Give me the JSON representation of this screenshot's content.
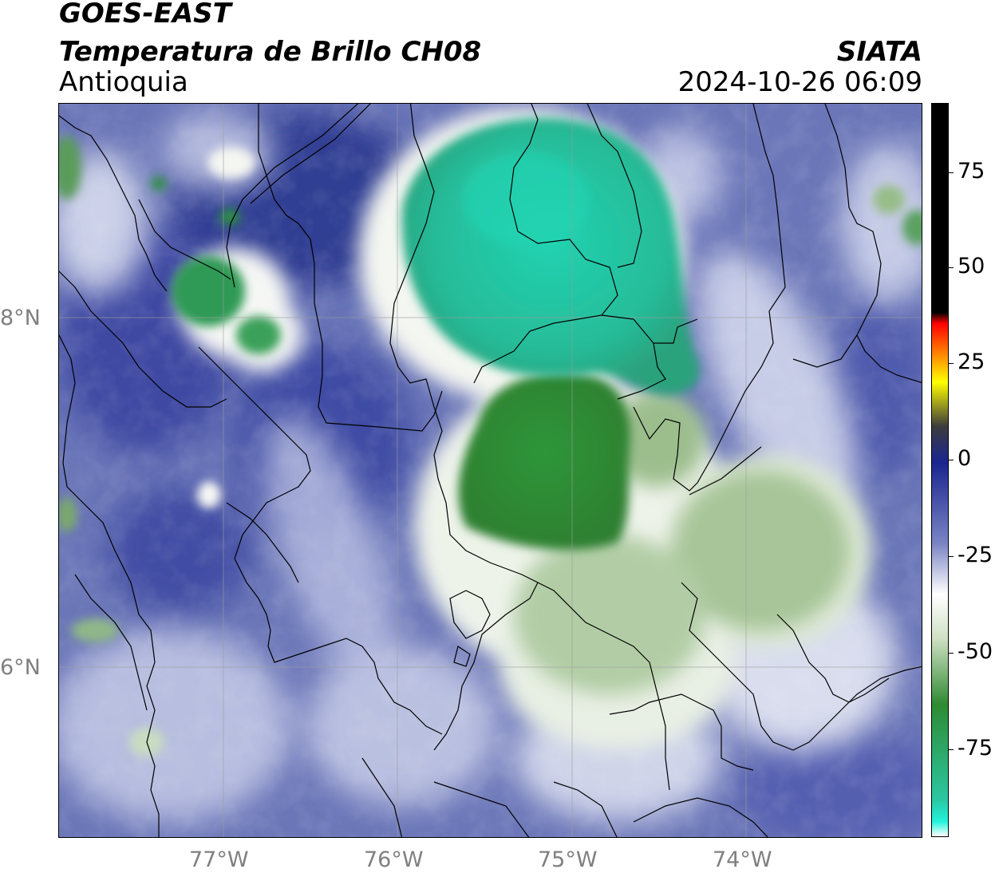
{
  "header": {
    "satellite": "GOES-EAST",
    "product": "Temperatura de Brillo CH08",
    "region": "Antioquia",
    "org": "SIATA",
    "datetime": "2024-10-26 06:09"
  },
  "map": {
    "lat_labels": [
      "8°N",
      "6°N"
    ],
    "lon_labels": [
      "77°W",
      "76°W",
      "75°W",
      "74°W"
    ],
    "grid": true,
    "colors": {
      "cold_cloud_teal": "#22c3a0",
      "cold_cloud_green": "#2f8a32",
      "mid_green": "#a8c79a",
      "white": "#ffffff",
      "mid_blue": "#7a84c4",
      "dark_blue": "#25308e"
    }
  },
  "colorbar": {
    "labels": [
      "75",
      "50",
      "25",
      "0",
      "-25",
      "-50",
      "-75"
    ],
    "stops": [
      "#ffffff",
      "#22f2dc",
      "#2bc7a2",
      "#2f8a32",
      "#cfe0c4",
      "#ffffff",
      "#7a84c4",
      "#1a2590",
      "#3c3c3c",
      "#ffff00",
      "#ff8000",
      "#ff0000",
      "#000000"
    ]
  }
}
